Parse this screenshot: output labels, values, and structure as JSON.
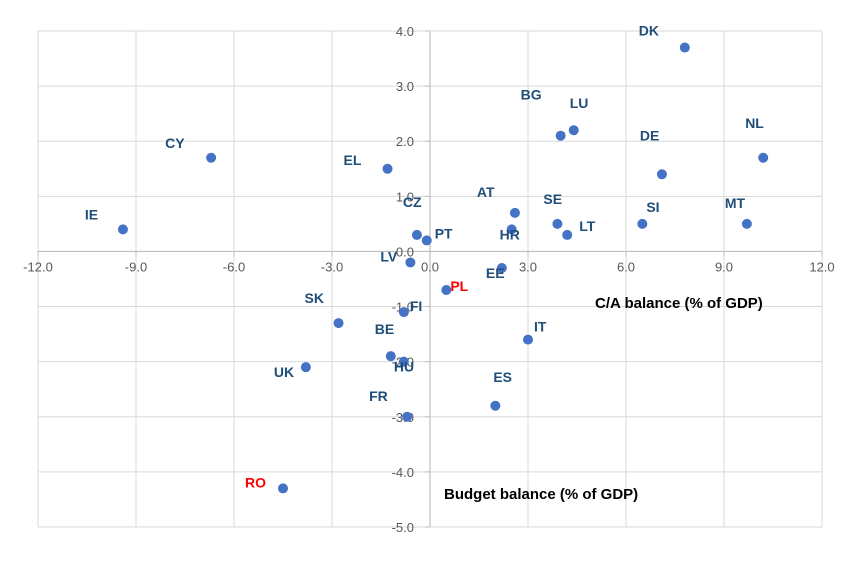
{
  "chart_data": {
    "type": "scatter",
    "title": "",
    "xlabel": "C/A balance (% of GDP)",
    "ylabel": "Budget balance (% of GDP)",
    "xlim": [
      -12,
      12
    ],
    "ylim": [
      -5,
      4
    ],
    "x_ticks": [
      -12,
      -9,
      -6,
      -3,
      0,
      3,
      6,
      9,
      12
    ],
    "y_ticks": [
      4,
      3,
      2,
      1,
      0,
      -1,
      -2,
      -3,
      -4,
      -5
    ],
    "x_tick_labels": [
      "-12.0",
      "-9.0",
      "-6.0",
      "-3.0",
      "0.0",
      "3.0",
      "6.0",
      "9.0",
      "12.0"
    ],
    "y_tick_labels": [
      "4.0",
      "3.0",
      "2.0",
      "1.0",
      "0.0",
      "-1.0",
      "-2.0",
      "-3.0",
      "-4.0",
      "-5.0"
    ],
    "grid": true,
    "marker_color": "#4472C4",
    "label_color": "#1F4E79",
    "highlight_color": "#FF0000",
    "points": [
      {
        "label": "DK",
        "x": 7.8,
        "y": 3.7
      },
      {
        "label": "LU",
        "x": 4.4,
        "y": 2.2
      },
      {
        "label": "BG",
        "x": 4.0,
        "y": 2.1
      },
      {
        "label": "DE",
        "x": 7.1,
        "y": 1.4
      },
      {
        "label": "NL",
        "x": 10.2,
        "y": 1.7
      },
      {
        "label": "CY",
        "x": -6.7,
        "y": 1.7
      },
      {
        "label": "EL",
        "x": -1.3,
        "y": 1.5
      },
      {
        "label": "MT",
        "x": 9.7,
        "y": 0.5
      },
      {
        "label": "IE",
        "x": -9.4,
        "y": 0.4
      },
      {
        "label": "AT",
        "x": 2.6,
        "y": 0.7
      },
      {
        "label": "SE",
        "x": 3.9,
        "y": 0.5
      },
      {
        "label": "SI",
        "x": 6.5,
        "y": 0.5
      },
      {
        "label": "HR",
        "x": 2.5,
        "y": 0.4
      },
      {
        "label": "LT",
        "x": 4.2,
        "y": 0.3
      },
      {
        "label": "CZ",
        "x": -0.4,
        "y": 0.3
      },
      {
        "label": "PT",
        "x": -0.1,
        "y": 0.2
      },
      {
        "label": "LV",
        "x": -0.6,
        "y": -0.2
      },
      {
        "label": "EE",
        "x": 2.2,
        "y": -0.3
      },
      {
        "label": "PL",
        "x": 0.5,
        "y": -0.7,
        "highlight": true
      },
      {
        "label": "FI",
        "x": -0.8,
        "y": -1.1
      },
      {
        "label": "SK",
        "x": -2.8,
        "y": -1.3
      },
      {
        "label": "IT",
        "x": 3.0,
        "y": -1.6
      },
      {
        "label": "BE",
        "x": -1.2,
        "y": -1.9
      },
      {
        "label": "HU",
        "x": -0.8,
        "y": -2.0
      },
      {
        "label": "UK",
        "x": -3.8,
        "y": -2.1
      },
      {
        "label": "ES",
        "x": 2.0,
        "y": -2.8
      },
      {
        "label": "FR",
        "x": -0.7,
        "y": -3.0
      },
      {
        "label": "RO",
        "x": -4.5,
        "y": -4.3,
        "highlight": true
      }
    ]
  }
}
